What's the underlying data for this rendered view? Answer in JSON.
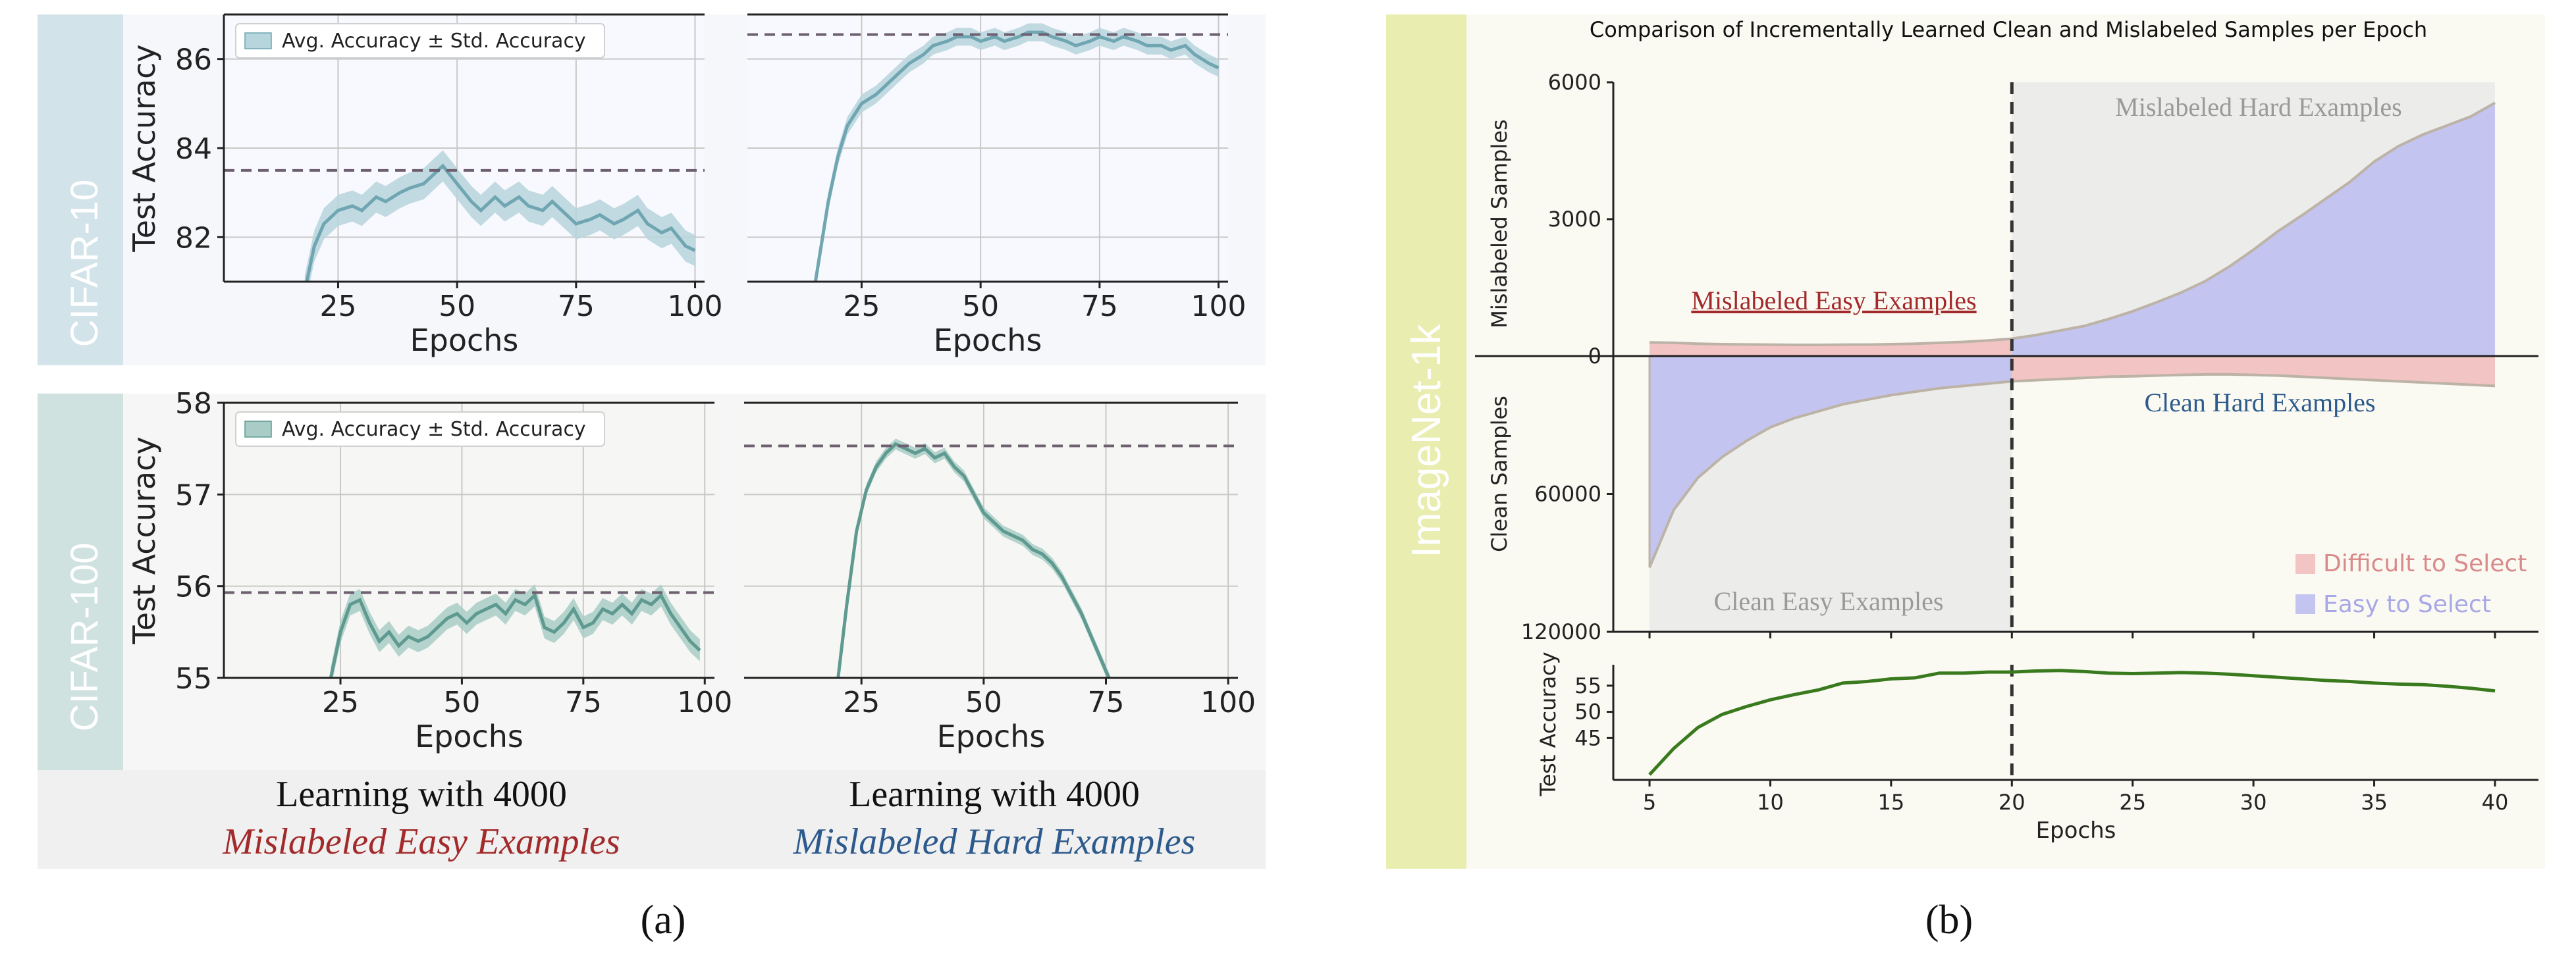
{
  "panel_a": {
    "caption": "(a)",
    "row_labels": [
      "CIFAR-10",
      "CIFAR-100"
    ],
    "bottom_labels": {
      "left_line1": "Learning with 4000",
      "left_line2": "Mislabeled Easy Examples",
      "right_line1": "Learning with 4000",
      "right_line2": "Mislabeled Hard Examples"
    }
  },
  "panel_b": {
    "caption": "(b)",
    "row_label": "ImageNet-1k",
    "title": "Comparison of Incrementally Learned Clean and Mislabeled Samples per Epoch",
    "upper_ylabel_top": "Mislabeled Samples",
    "upper_ylabel_bottom": "Clean Samples",
    "lower_ylabel": "Test Accuracy",
    "xlabel": "Epochs",
    "region_labels": {
      "mislabeled_easy": "Mislabeled Easy Examples",
      "mislabeled_hard": "Mislabeled Hard Examples",
      "clean_easy": "Clean Easy Examples",
      "clean_hard": "Clean Hard Examples"
    },
    "legend": [
      "Difficult to Select",
      "Easy to Select"
    ]
  },
  "colors": {
    "cifar10_band": "#d2e3e9",
    "cifar100_band": "#cfe2df",
    "imagenet_band": "#e9eeb0",
    "cifar10_line": "#6fa6b2",
    "cifar10_fill": "#b7d5dc",
    "cifar100_line": "#5f9a90",
    "cifar100_fill": "#a9cdc6",
    "accuracy_line": "#3a7a1e",
    "difficult": "#f2c4c4",
    "easy": "#c4c4f0",
    "mislabeled_easy_text": "#a32a2a",
    "mislabeled_hard_text": "#2d5a8c"
  },
  "chart_data": [
    {
      "id": "cifar10_easy",
      "type": "line",
      "legend": [
        "Avg. Accuracy ± Std. Accuracy"
      ],
      "xlabel": "Epochs",
      "ylabel": "Test Accuracy",
      "xlim": [
        1,
        102
      ],
      "ylim": [
        81,
        87
      ],
      "xticks": [
        25,
        50,
        75,
        100
      ],
      "yticks": [
        82,
        84,
        86
      ],
      "baseline": 83.5,
      "std": 0.35,
      "x": [
        18,
        20,
        22,
        25,
        28,
        30,
        33,
        35,
        38,
        40,
        43,
        45,
        47,
        50,
        53,
        55,
        58,
        60,
        63,
        65,
        68,
        70,
        73,
        75,
        78,
        80,
        83,
        85,
        88,
        90,
        93,
        95,
        98,
        100
      ],
      "y": [
        80.8,
        81.8,
        82.3,
        82.6,
        82.7,
        82.6,
        82.9,
        82.8,
        83.0,
        83.1,
        83.2,
        83.4,
        83.6,
        83.2,
        82.8,
        82.6,
        82.9,
        82.7,
        82.9,
        82.7,
        82.6,
        82.8,
        82.5,
        82.3,
        82.4,
        82.5,
        82.3,
        82.4,
        82.6,
        82.3,
        82.1,
        82.2,
        81.8,
        81.7
      ]
    },
    {
      "id": "cifar10_hard",
      "type": "line",
      "xlabel": "Epochs",
      "xlim": [
        1,
        102
      ],
      "ylim": [
        81,
        87
      ],
      "xticks": [
        25,
        50,
        75,
        100
      ],
      "baseline": 86.55,
      "std": 0.2,
      "x": [
        15,
        18,
        20,
        22,
        25,
        28,
        30,
        33,
        35,
        38,
        40,
        43,
        45,
        48,
        50,
        53,
        55,
        58,
        60,
        63,
        65,
        68,
        70,
        73,
        75,
        78,
        80,
        83,
        85,
        88,
        90,
        93,
        95,
        98,
        100
      ],
      "y": [
        80.8,
        82.8,
        83.8,
        84.5,
        85.0,
        85.2,
        85.4,
        85.7,
        85.9,
        86.1,
        86.3,
        86.4,
        86.5,
        86.5,
        86.4,
        86.5,
        86.4,
        86.5,
        86.6,
        86.6,
        86.5,
        86.4,
        86.3,
        86.4,
        86.5,
        86.4,
        86.5,
        86.4,
        86.3,
        86.3,
        86.2,
        86.3,
        86.1,
        85.9,
        85.8
      ]
    },
    {
      "id": "cifar100_easy",
      "type": "line",
      "legend": [
        "Avg. Accuracy ± Std. Accuracy"
      ],
      "xlabel": "Epochs",
      "ylabel": "Test Accuracy",
      "xlim": [
        1,
        102
      ],
      "ylim": [
        55,
        58
      ],
      "xticks": [
        25,
        50,
        75,
        100
      ],
      "yticks": [
        55,
        56,
        57,
        58
      ],
      "baseline": 55.93,
      "std": 0.12,
      "x": [
        23,
        25,
        27,
        29,
        31,
        33,
        35,
        37,
        39,
        41,
        43,
        45,
        47,
        49,
        51,
        53,
        55,
        57,
        59,
        61,
        63,
        65,
        67,
        69,
        71,
        73,
        75,
        77,
        79,
        81,
        83,
        85,
        87,
        89,
        91,
        93,
        95,
        97,
        99
      ],
      "y": [
        55.0,
        55.5,
        55.8,
        55.85,
        55.6,
        55.4,
        55.5,
        55.35,
        55.45,
        55.4,
        55.45,
        55.55,
        55.65,
        55.7,
        55.6,
        55.7,
        55.75,
        55.8,
        55.7,
        55.85,
        55.8,
        55.9,
        55.55,
        55.5,
        55.6,
        55.75,
        55.55,
        55.6,
        55.75,
        55.7,
        55.8,
        55.7,
        55.85,
        55.8,
        55.9,
        55.7,
        55.55,
        55.4,
        55.3
      ]
    },
    {
      "id": "cifar100_hard",
      "type": "line",
      "xlabel": "Epochs",
      "xlim": [
        1,
        102
      ],
      "ylim": [
        55,
        58
      ],
      "xticks": [
        25,
        50,
        75,
        100
      ],
      "baseline": 57.53,
      "std": 0.06,
      "x": [
        20,
        22,
        24,
        26,
        28,
        30,
        32,
        34,
        36,
        38,
        40,
        42,
        44,
        46,
        48,
        50,
        52,
        54,
        56,
        58,
        60,
        62,
        64,
        66,
        68,
        70,
        72,
        74,
        76
      ],
      "y": [
        54.9,
        55.8,
        56.6,
        57.05,
        57.3,
        57.45,
        57.55,
        57.5,
        57.45,
        57.5,
        57.4,
        57.45,
        57.3,
        57.2,
        57.0,
        56.8,
        56.7,
        56.6,
        56.55,
        56.5,
        56.4,
        56.35,
        56.25,
        56.1,
        55.9,
        55.7,
        55.45,
        55.2,
        54.95
      ]
    },
    {
      "id": "imagenet_samples",
      "type": "area",
      "xlim": [
        3.5,
        41.8
      ],
      "yticks_top": [
        6000,
        3000,
        0
      ],
      "yticks_bottom": [
        60000,
        120000
      ],
      "ylim_top": [
        0,
        6000
      ],
      "ylim_bottom": [
        0,
        120000
      ],
      "vline": 20,
      "x": [
        5,
        6,
        7,
        8,
        9,
        10,
        11,
        12,
        13,
        14,
        15,
        16,
        17,
        18,
        19,
        20,
        21,
        22,
        23,
        24,
        25,
        26,
        27,
        28,
        29,
        30,
        31,
        32,
        33,
        34,
        35,
        36,
        37,
        38,
        39,
        40
      ],
      "mislabeled": [
        300,
        290,
        270,
        260,
        255,
        250,
        245,
        245,
        250,
        250,
        260,
        270,
        290,
        310,
        340,
        380,
        460,
        560,
        660,
        810,
        980,
        1180,
        1390,
        1640,
        1960,
        2330,
        2730,
        3080,
        3450,
        3820,
        4260,
        4600,
        4850,
        5050,
        5250,
        5550
      ],
      "clean": [
        92000,
        67000,
        53000,
        44000,
        37000,
        31000,
        27000,
        24000,
        21000,
        19000,
        17000,
        15500,
        14000,
        13000,
        12000,
        11000,
        10500,
        10000,
        9500,
        9000,
        8800,
        8500,
        8200,
        8000,
        8000,
        8200,
        8500,
        9000,
        9500,
        10000,
        10500,
        11000,
        11500,
        12000,
        12500,
        13000
      ]
    },
    {
      "id": "imagenet_accuracy",
      "type": "line",
      "xlim": [
        3.5,
        41.8
      ],
      "ylim": [
        37,
        59
      ],
      "xticks": [
        5,
        10,
        15,
        20,
        25,
        30,
        35,
        40
      ],
      "yticks": [
        45,
        50,
        55
      ],
      "vline": 20,
      "x": [
        5,
        6,
        7,
        8,
        9,
        10,
        11,
        12,
        13,
        14,
        15,
        16,
        17,
        18,
        19,
        20,
        21,
        22,
        23,
        24,
        25,
        26,
        27,
        28,
        29,
        30,
        31,
        32,
        33,
        34,
        35,
        36,
        37,
        38,
        39,
        40
      ],
      "y": [
        38.0,
        43.0,
        47.0,
        49.5,
        51.0,
        52.3,
        53.3,
        54.2,
        55.5,
        55.8,
        56.3,
        56.5,
        57.4,
        57.4,
        57.6,
        57.6,
        57.8,
        57.9,
        57.7,
        57.4,
        57.3,
        57.4,
        57.5,
        57.4,
        57.2,
        56.9,
        56.6,
        56.3,
        56.0,
        55.8,
        55.5,
        55.3,
        55.2,
        54.9,
        54.5,
        54.0
      ]
    }
  ]
}
